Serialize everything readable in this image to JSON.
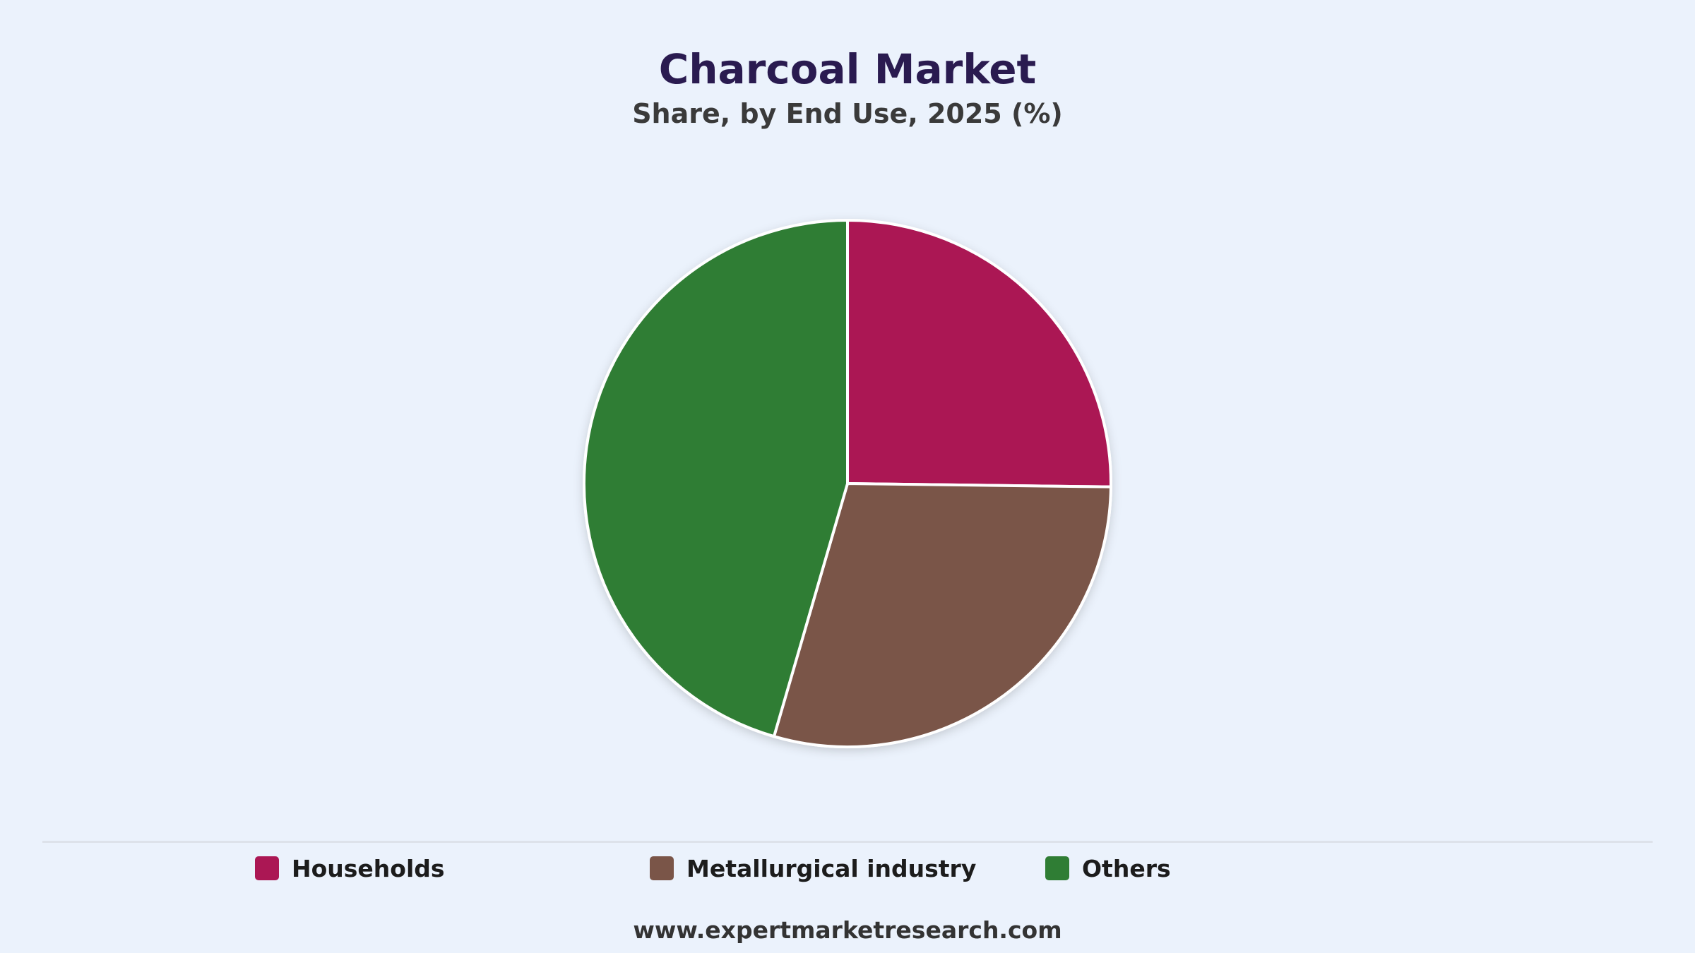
{
  "chart_data": {
    "type": "pie",
    "title": "Charcoal Market",
    "subtitle": "Share, by End Use, 2025 (%)",
    "slices": [
      {
        "name": "Households",
        "value": 25.2,
        "color": "#ab1754"
      },
      {
        "name": "Metallurgical industry",
        "value": 29.3,
        "color": "#7a5548"
      },
      {
        "name": "Others",
        "value": 45.5,
        "color": "#2f7d34"
      }
    ],
    "start_angle": "12 o'clock, clockwise",
    "legend_position": "bottom"
  },
  "footer": {
    "source": "www.expertmarketresearch.com"
  }
}
